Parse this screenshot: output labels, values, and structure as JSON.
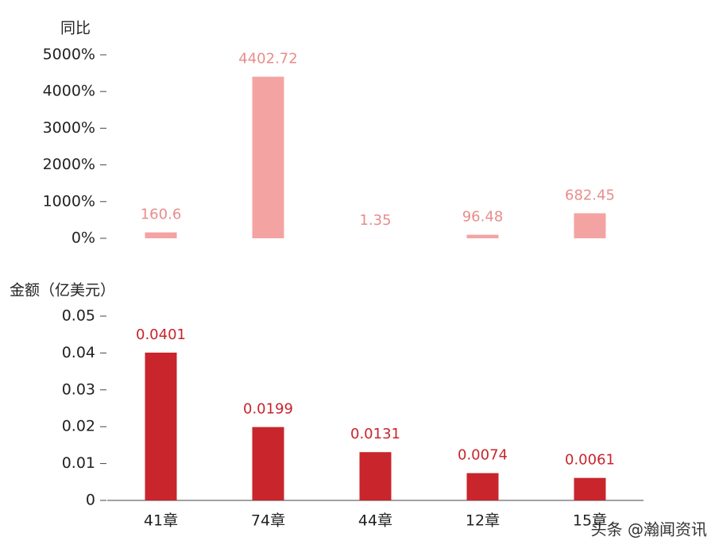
{
  "chart_data": [
    {
      "type": "bar",
      "y_label": "同比",
      "color": "#f4a3a3",
      "label_color": "#e98c8c",
      "values": [
        160.6,
        4402.72,
        1.35,
        96.48,
        682.45
      ],
      "ylim": [
        0,
        5000
      ],
      "yticks": [
        {
          "value": 0,
          "label": "0%"
        },
        {
          "value": 1000,
          "label": "1000%"
        },
        {
          "value": 2000,
          "label": "2000%"
        },
        {
          "value": 3000,
          "label": "3000%"
        },
        {
          "value": 4000,
          "label": "4000%"
        },
        {
          "value": 5000,
          "label": "5000%"
        }
      ]
    },
    {
      "type": "bar",
      "y_label": "金额（亿美元）",
      "color": "#c8252c",
      "label_color": "#c8252c",
      "categories": [
        "41章",
        "74章",
        "44章",
        "12章",
        "15章"
      ],
      "values": [
        0.0401,
        0.0199,
        0.0131,
        0.0074,
        0.0061
      ],
      "ylim": [
        0,
        0.05
      ],
      "yticks": [
        0,
        0.01,
        0.02,
        0.03,
        0.04,
        0.05
      ]
    }
  ],
  "watermark": "头条 @瀚闻资讯"
}
